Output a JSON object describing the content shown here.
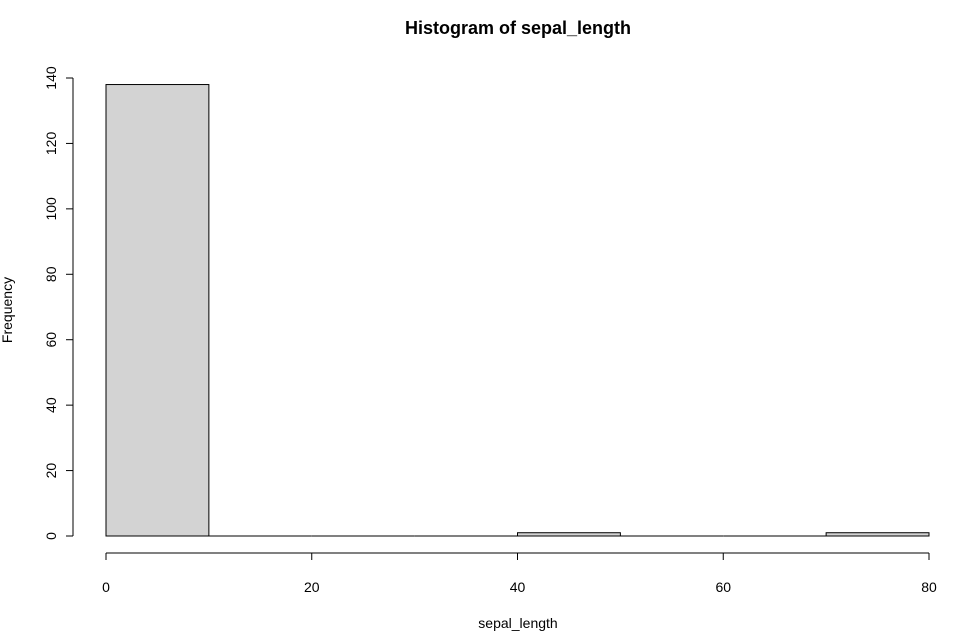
{
  "chart_data": {
    "type": "bar",
    "title": "Histogram of sepal_length",
    "xlabel": "sepal_length",
    "ylabel": "Frequency",
    "bins": [
      {
        "x0": 0,
        "x1": 10,
        "count": 138
      },
      {
        "x0": 10,
        "x1": 20,
        "count": 0
      },
      {
        "x0": 20,
        "x1": 30,
        "count": 0
      },
      {
        "x0": 30,
        "x1": 40,
        "count": 0
      },
      {
        "x0": 40,
        "x1": 50,
        "count": 1
      },
      {
        "x0": 50,
        "x1": 60,
        "count": 0
      },
      {
        "x0": 60,
        "x1": 70,
        "count": 0
      },
      {
        "x0": 70,
        "x1": 80,
        "count": 1
      }
    ],
    "xlim": [
      0,
      80
    ],
    "ylim": [
      0,
      140
    ],
    "xticks": [
      "0",
      "20",
      "40",
      "60",
      "80"
    ],
    "yticks": [
      "0",
      "20",
      "40",
      "60",
      "80",
      "100",
      "120",
      "140"
    ],
    "bar_color": "#d3d3d3",
    "grid": false,
    "legend": "none"
  }
}
